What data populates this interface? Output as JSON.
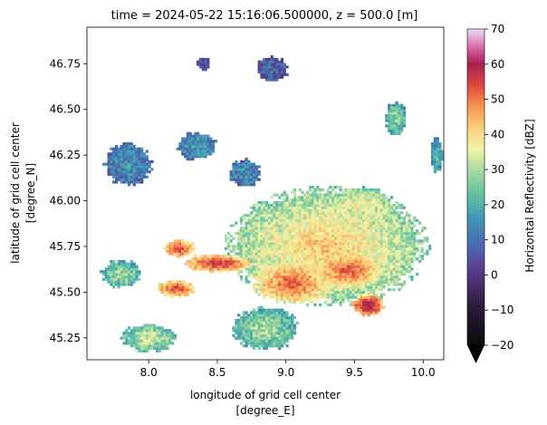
{
  "chart_data": {
    "type": "heatmap",
    "title": "time = 2024-05-22 15:16:06.500000, z = 500.0 [m]",
    "xlabel_line1": "longitude of grid cell center",
    "xlabel_line2": "[degree_E]",
    "ylabel_line1": "latitude of grid cell center",
    "ylabel_line2": "[degree_N]",
    "xlim": [
      7.55,
      10.15
    ],
    "ylim": [
      45.13,
      46.95
    ],
    "xticks": [
      8.0,
      8.5,
      9.0,
      9.5,
      10.0
    ],
    "xtick_labels": [
      "8.0",
      "8.5",
      "9.0",
      "9.5",
      "10.0"
    ],
    "yticks": [
      45.25,
      45.5,
      45.75,
      46.0,
      46.25,
      46.5,
      46.75
    ],
    "ytick_labels": [
      "45.25",
      "45.50",
      "45.75",
      "46.00",
      "46.25",
      "46.50",
      "46.75"
    ],
    "grid": false,
    "colorbar": {
      "label": "Horizontal Reflectivity [dBZ]",
      "vmin": -20,
      "vmax": 70,
      "ticks": [
        -20,
        -10,
        0,
        10,
        20,
        30,
        40,
        50,
        60,
        70
      ],
      "tick_labels": [
        "−20",
        "−10",
        "0",
        "10",
        "20",
        "30",
        "40",
        "50",
        "60",
        "70"
      ],
      "extend": "min",
      "colormap": "pyart HomeyerRainbow"
    },
    "echo_regions": [
      {
        "lon": 9.3,
        "lat": 45.75,
        "r_lon": 0.75,
        "r_lat": 0.33,
        "dbz": 32
      },
      {
        "lon": 9.05,
        "lat": 45.55,
        "r_lon": 0.3,
        "r_lat": 0.12,
        "dbz": 42
      },
      {
        "lon": 9.45,
        "lat": 45.62,
        "r_lon": 0.25,
        "r_lat": 0.1,
        "dbz": 43
      },
      {
        "lon": 9.6,
        "lat": 45.43,
        "r_lon": 0.12,
        "r_lat": 0.06,
        "dbz": 55
      },
      {
        "lon": 8.5,
        "lat": 45.66,
        "r_lon": 0.25,
        "r_lat": 0.05,
        "dbz": 48
      },
      {
        "lon": 8.2,
        "lat": 45.52,
        "r_lon": 0.15,
        "r_lat": 0.05,
        "dbz": 45
      },
      {
        "lon": 8.22,
        "lat": 45.74,
        "r_lon": 0.12,
        "r_lat": 0.05,
        "dbz": 46
      },
      {
        "lon": 9.55,
        "lat": 45.98,
        "r_lon": 0.25,
        "r_lat": 0.1,
        "dbz": 28
      },
      {
        "lon": 8.0,
        "lat": 45.25,
        "r_lon": 0.2,
        "r_lat": 0.08,
        "dbz": 25
      },
      {
        "lon": 8.85,
        "lat": 45.3,
        "r_lon": 0.25,
        "r_lat": 0.12,
        "dbz": 22
      },
      {
        "lon": 7.8,
        "lat": 45.6,
        "r_lon": 0.15,
        "r_lat": 0.08,
        "dbz": 22
      },
      {
        "lon": 7.85,
        "lat": 46.2,
        "r_lon": 0.18,
        "r_lat": 0.12,
        "dbz": 10
      },
      {
        "lon": 8.35,
        "lat": 46.3,
        "r_lon": 0.15,
        "r_lat": 0.08,
        "dbz": 12
      },
      {
        "lon": 8.7,
        "lat": 46.15,
        "r_lon": 0.12,
        "r_lat": 0.08,
        "dbz": 10
      },
      {
        "lon": 9.8,
        "lat": 46.45,
        "r_lon": 0.08,
        "r_lat": 0.1,
        "dbz": 20
      },
      {
        "lon": 10.1,
        "lat": 46.25,
        "r_lon": 0.05,
        "r_lat": 0.1,
        "dbz": 15
      },
      {
        "lon": 8.9,
        "lat": 46.72,
        "r_lon": 0.12,
        "r_lat": 0.07,
        "dbz": 5
      },
      {
        "lon": 8.4,
        "lat": 46.75,
        "r_lon": 0.05,
        "r_lat": 0.04,
        "dbz": 5
      }
    ]
  }
}
